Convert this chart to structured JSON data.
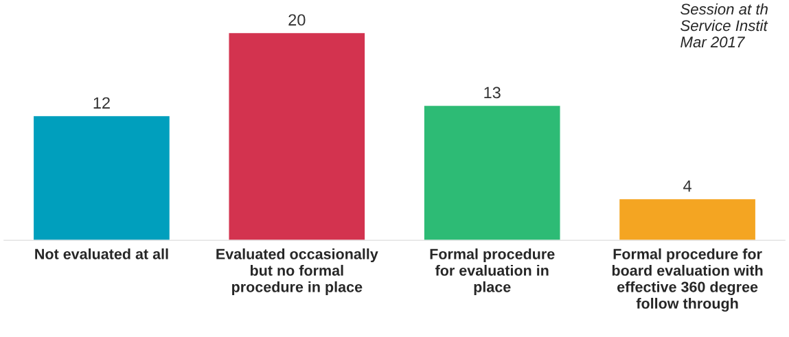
{
  "chart_data": {
    "type": "bar",
    "categories": [
      "Not evaluated at all",
      "Evaluated occasionally\nbut no formal\nprocedure in place",
      "Formal procedure\nfor evaluation in\nplace",
      "Formal procedure for\nboard evaluation with\neffective 360 degree\nfollow through"
    ],
    "values": [
      12,
      20,
      13,
      4
    ],
    "colors": [
      "#009fbd",
      "#d3334f",
      "#2dbb75",
      "#f4a522"
    ],
    "data_labels": true,
    "annotations": [
      "Session at th\nService Instit\nMar 2017"
    ]
  }
}
